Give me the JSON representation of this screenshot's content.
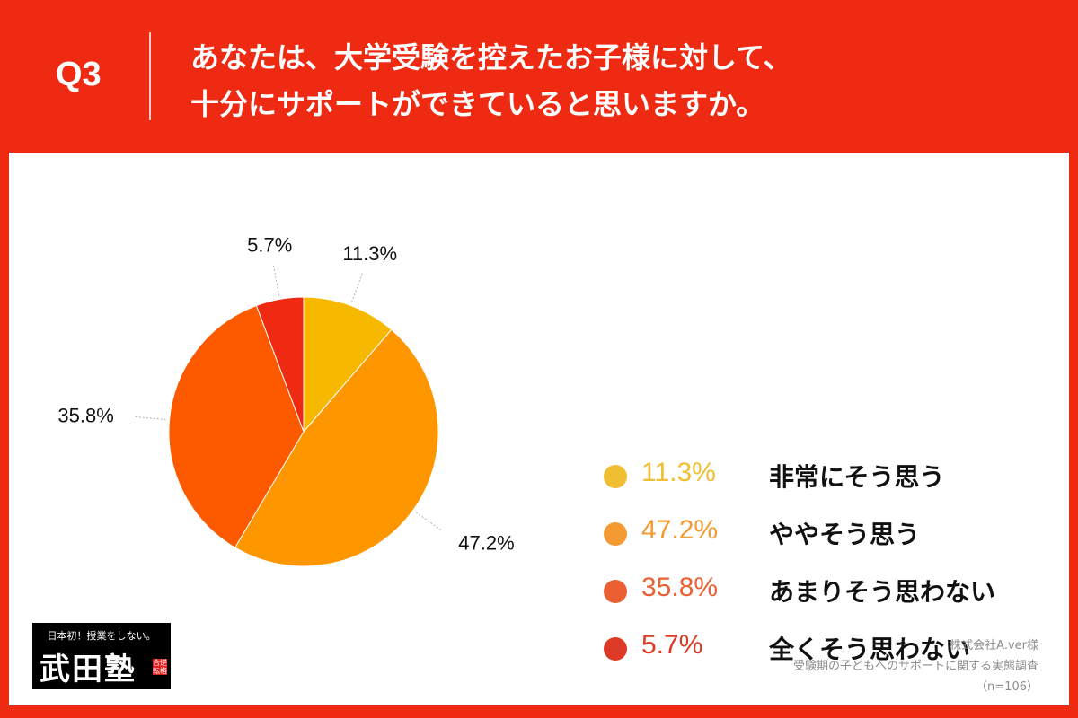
{
  "header": {
    "question_label": "Q3",
    "question_line1": "あなたは、大学受験を控えたお子様に対して、",
    "question_line2": "十分にサポートができていると思いますか。"
  },
  "chart_data": {
    "type": "pie",
    "title": "",
    "unit": "%",
    "start_angle": "12 o'clock, clockwise",
    "slices": [
      {
        "label": "非常にそう思う",
        "value": 11.3,
        "value_label": "11.3%",
        "color": "#f6b900",
        "legend_color": "#f0be32"
      },
      {
        "label": "ややそう思う",
        "value": 47.2,
        "value_label": "47.2%",
        "color": "#fe9600",
        "legend_color": "#f39a32"
      },
      {
        "label": "あまりそう思わない",
        "value": 35.8,
        "value_label": "35.8%",
        "color": "#fd5a00",
        "legend_color": "#ea6032"
      },
      {
        "label": "全くそう思わない",
        "value": 5.7,
        "value_label": "5.7%",
        "color": "#ee2a12",
        "legend_color": "#dc3a26"
      }
    ]
  },
  "logo": {
    "tagline": "日本初！授業をしない。",
    "name": "武田塾",
    "badge": "合逆転格"
  },
  "source": {
    "company": "株式会社A.ver様",
    "survey": "受験期の子どもへのサポートに関する実態調査",
    "sample": "（n=106）"
  },
  "colors": {
    "frame": "#ee2a12",
    "panel": "#ffffff",
    "leader_line": "#b0b0b0"
  }
}
